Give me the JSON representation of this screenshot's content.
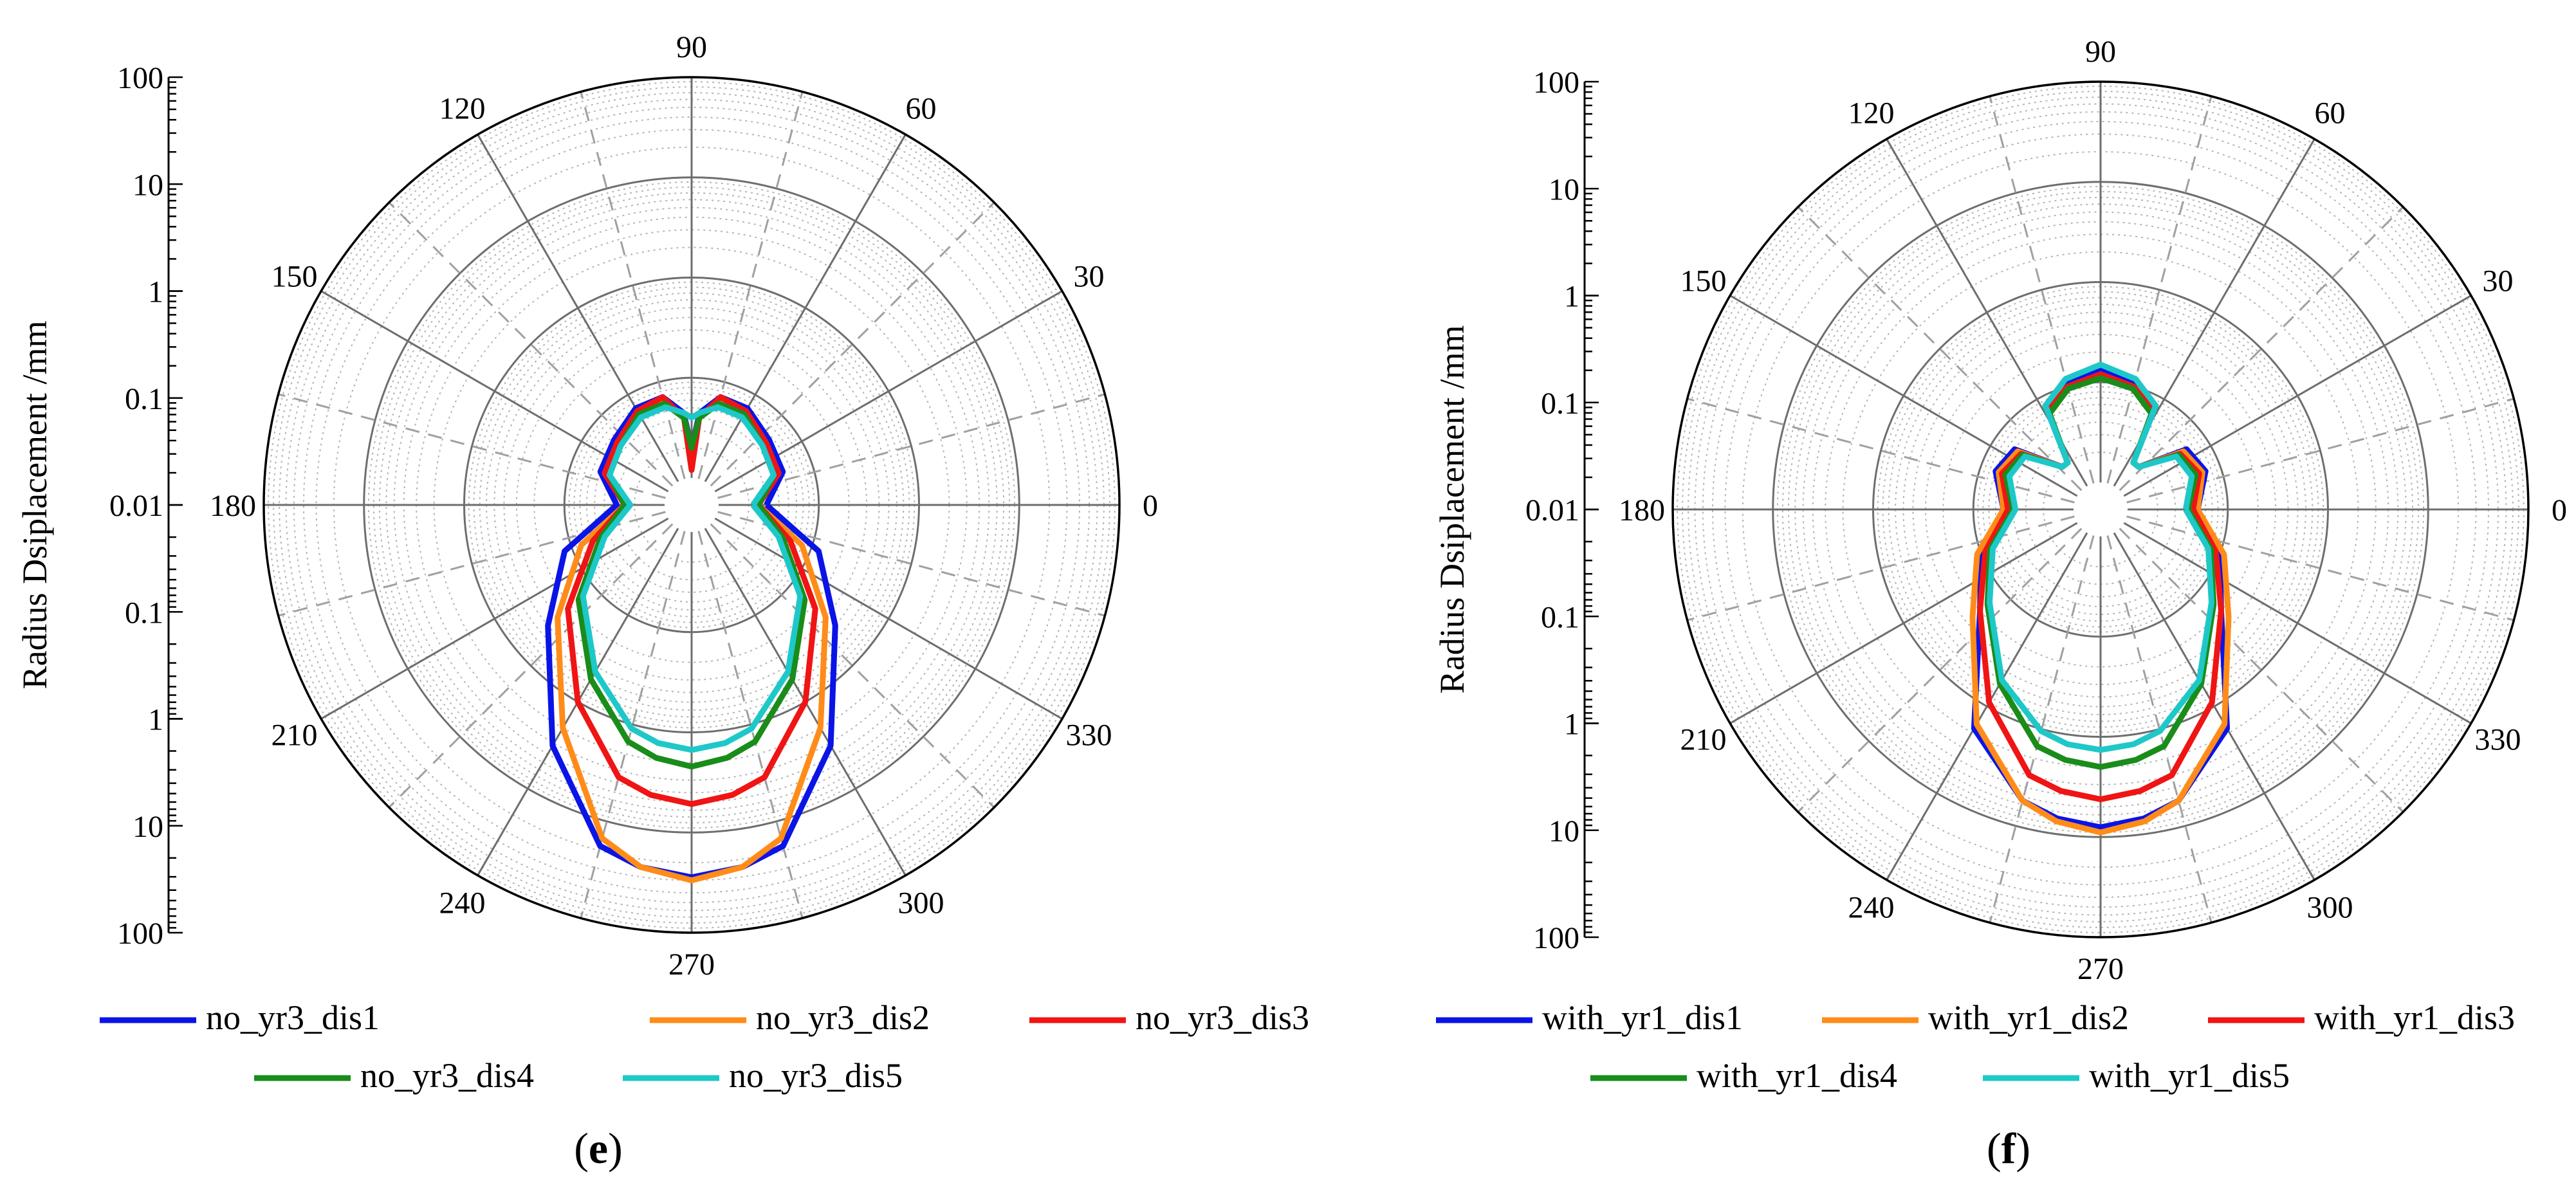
{
  "figure": {
    "panels": [
      {
        "caption_letter": "e"
      },
      {
        "caption_letter": "f"
      }
    ]
  },
  "colors": {
    "dis1": "#0a14e6",
    "dis2": "#ff8c19",
    "dis3": "#f01414",
    "dis4": "#1a8c1a",
    "dis5": "#1ec8c8"
  },
  "chart_data": [
    {
      "type": "polar-line",
      "panel": "e",
      "ylabel": "Radius Dsiplacement /mm",
      "radial_axis": {
        "scale": "log",
        "min": 0.01,
        "max": 100,
        "tick_labels": [
          "100",
          "10",
          "1",
          "0.1",
          "0.01",
          "0.1",
          "1",
          "10",
          "100"
        ]
      },
      "angle_ticks": [
        "0",
        "30",
        "60",
        "90",
        "120",
        "150",
        "180",
        "210",
        "240",
        "270",
        "300",
        "330"
      ],
      "legend": [
        "no_yr3_dis1",
        "no_yr3_dis2",
        "no_yr3_dis3",
        "no_yr3_dis4",
        "no_yr3_dis5"
      ],
      "series": [
        {
          "name": "no_yr3_dis1",
          "angles": [
            0,
            20,
            40,
            60,
            75,
            85,
            90,
            95,
            105,
            120,
            140,
            160,
            180,
            200,
            220,
            240,
            255,
            262,
            270,
            278,
            285,
            300,
            320,
            340
          ],
          "values": [
            0.03,
            0.05,
            0.055,
            0.07,
            0.07,
            0.045,
            0.02,
            0.045,
            0.07,
            0.07,
            0.055,
            0.05,
            0.03,
            0.12,
            0.4,
            3.2,
            18,
            24,
            28,
            24,
            18,
            3.2,
            0.4,
            0.12
          ]
        },
        {
          "name": "no_yr3_dis2",
          "angles": [
            0,
            20,
            40,
            60,
            75,
            85,
            90,
            95,
            105,
            120,
            140,
            160,
            180,
            200,
            220,
            240,
            255,
            262,
            270,
            278,
            285,
            300,
            320,
            340
          ],
          "values": [
            0.025,
            0.045,
            0.05,
            0.065,
            0.065,
            0.04,
            0.02,
            0.04,
            0.065,
            0.065,
            0.05,
            0.045,
            0.025,
            0.08,
            0.3,
            2.0,
            15,
            24,
            30,
            24,
            15,
            2.0,
            0.3,
            0.08
          ]
        },
        {
          "name": "no_yr3_dis3",
          "angles": [
            0,
            20,
            40,
            60,
            75,
            85,
            90,
            95,
            105,
            120,
            140,
            160,
            180,
            200,
            220,
            240,
            255,
            262,
            270,
            278,
            285,
            300,
            320,
            340
          ],
          "values": [
            0.025,
            0.045,
            0.05,
            0.065,
            0.07,
            0.04,
            0.012,
            0.04,
            0.07,
            0.065,
            0.05,
            0.045,
            0.025,
            0.06,
            0.22,
            1.0,
            3.5,
            4.5,
            5.2,
            4.5,
            3.5,
            1.0,
            0.22,
            0.06
          ]
        },
        {
          "name": "no_yr3_dis4",
          "angles": [
            0,
            20,
            40,
            60,
            75,
            85,
            90,
            95,
            105,
            120,
            140,
            160,
            180,
            200,
            220,
            240,
            255,
            262,
            270,
            278,
            285,
            300,
            320,
            340
          ],
          "values": [
            0.025,
            0.04,
            0.045,
            0.06,
            0.06,
            0.04,
            0.02,
            0.04,
            0.06,
            0.06,
            0.045,
            0.04,
            0.025,
            0.05,
            0.16,
            0.55,
            1.5,
            1.9,
            2.2,
            1.9,
            1.5,
            0.55,
            0.16,
            0.05
          ]
        },
        {
          "name": "no_yr3_dis5",
          "angles": [
            0,
            20,
            40,
            60,
            75,
            85,
            90,
            95,
            105,
            120,
            140,
            160,
            180,
            200,
            220,
            240,
            255,
            262,
            270,
            278,
            285,
            300,
            320,
            340
          ],
          "values": [
            0.022,
            0.04,
            0.045,
            0.055,
            0.055,
            0.045,
            0.04,
            0.045,
            0.055,
            0.055,
            0.045,
            0.04,
            0.022,
            0.045,
            0.14,
            0.45,
            1.1,
            1.35,
            1.5,
            1.35,
            1.1,
            0.45,
            0.14,
            0.045
          ]
        }
      ]
    },
    {
      "type": "polar-line",
      "panel": "f",
      "ylabel": "Radius Dsiplacement /mm",
      "radial_axis": {
        "scale": "log",
        "min": 0.01,
        "max": 100,
        "tick_labels": [
          "100",
          "10",
          "1",
          "0.1",
          "0.01",
          "0.1",
          "1",
          "10",
          "100"
        ]
      },
      "angle_ticks": [
        "0",
        "30",
        "60",
        "90",
        "120",
        "150",
        "180",
        "210",
        "240",
        "270",
        "300",
        "330"
      ],
      "legend": [
        "with_yr1_dis1",
        "with_yr1_dis2",
        "with_yr1_dis3",
        "with_yr1_dis4",
        "with_yr1_dis5"
      ],
      "series": [
        {
          "name": "with_yr1_dis1",
          "angles": [
            0,
            20,
            35,
            48,
            55,
            62,
            75,
            90,
            105,
            118,
            125,
            132,
            145,
            160,
            180,
            200,
            220,
            240,
            255,
            262,
            270,
            278,
            285,
            300,
            320,
            340
          ],
          "values": [
            0.05,
            0.07,
            0.06,
            0.02,
            0.02,
            0.08,
            0.11,
            0.13,
            0.11,
            0.08,
            0.02,
            0.02,
            0.06,
            0.07,
            0.05,
            0.1,
            0.2,
            1.8,
            5.5,
            7,
            8,
            7,
            5.5,
            1.8,
            0.2,
            0.1
          ]
        },
        {
          "name": "with_yr1_dis2",
          "angles": [
            0,
            20,
            35,
            48,
            55,
            62,
            75,
            90,
            105,
            118,
            125,
            132,
            145,
            160,
            180,
            200,
            220,
            240,
            255,
            262,
            270,
            278,
            285,
            300,
            320,
            340
          ],
          "values": [
            0.05,
            0.065,
            0.055,
            0.02,
            0.02,
            0.075,
            0.1,
            0.12,
            0.1,
            0.075,
            0.02,
            0.02,
            0.055,
            0.065,
            0.05,
            0.11,
            0.25,
            1.6,
            5.5,
            7.5,
            9,
            7.5,
            5.5,
            1.6,
            0.25,
            0.11
          ]
        },
        {
          "name": "with_yr1_dis3",
          "angles": [
            0,
            20,
            35,
            48,
            55,
            62,
            75,
            90,
            105,
            118,
            125,
            132,
            145,
            160,
            180,
            200,
            220,
            240,
            255,
            262,
            270,
            278,
            285,
            300,
            320,
            340
          ],
          "values": [
            0.045,
            0.06,
            0.05,
            0.02,
            0.02,
            0.07,
            0.1,
            0.12,
            0.1,
            0.07,
            0.02,
            0.02,
            0.05,
            0.06,
            0.045,
            0.09,
            0.2,
            0.9,
            3.0,
            3.7,
            4.2,
            3.7,
            3.0,
            0.9,
            0.2,
            0.09
          ]
        },
        {
          "name": "with_yr1_dis4",
          "angles": [
            0,
            20,
            35,
            48,
            55,
            62,
            75,
            90,
            105,
            118,
            125,
            132,
            145,
            160,
            180,
            200,
            220,
            240,
            255,
            262,
            270,
            278,
            285,
            300,
            320,
            340
          ],
          "values": [
            0.04,
            0.055,
            0.048,
            0.02,
            0.02,
            0.065,
            0.095,
            0.11,
            0.095,
            0.065,
            0.02,
            0.02,
            0.048,
            0.055,
            0.04,
            0.08,
            0.16,
            0.55,
            1.5,
            1.8,
            2.0,
            1.8,
            1.5,
            0.55,
            0.16,
            0.08
          ]
        },
        {
          "name": "with_yr1_dis5",
          "angles": [
            0,
            20,
            35,
            48,
            55,
            62,
            75,
            90,
            105,
            118,
            125,
            132,
            145,
            160,
            180,
            200,
            220,
            240,
            255,
            262,
            270,
            278,
            285,
            300,
            320,
            340
          ],
          "values": [
            0.038,
            0.05,
            0.045,
            0.02,
            0.02,
            0.08,
            0.12,
            0.15,
            0.12,
            0.08,
            0.02,
            0.02,
            0.045,
            0.05,
            0.038,
            0.075,
            0.15,
            0.5,
            1.05,
            1.25,
            1.35,
            1.25,
            1.05,
            0.5,
            0.15,
            0.075
          ]
        }
      ]
    }
  ]
}
